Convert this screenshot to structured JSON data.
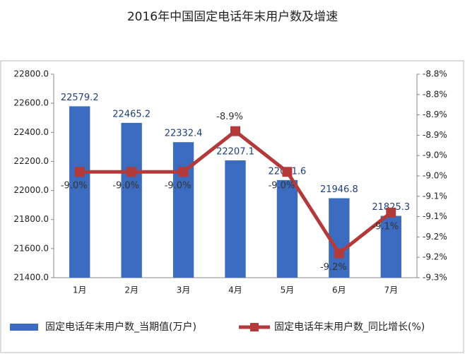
{
  "chart_data": {
    "type": "bar",
    "title": "2016年中国固定电话年末用户数及增速",
    "categories": [
      "1月",
      "2月",
      "3月",
      "4月",
      "5月",
      "6月",
      "7月"
    ],
    "series": [
      {
        "name": "固定电话年末用户数_当期值(万户)",
        "type": "bar",
        "color": "#3b6cbf",
        "values": [
          22579.2,
          22465.2,
          22332.4,
          22207.1,
          22071.6,
          21946.8,
          21825.3
        ]
      },
      {
        "name": "固定电话年末用户数_同比增长(%)",
        "type": "line",
        "axis": "y2",
        "color": "#b23a3a",
        "values": [
          -9.04,
          -9.04,
          -9.04,
          -8.94,
          -9.04,
          -9.24,
          -9.14
        ],
        "value_labels": [
          "-9.0%",
          "-9.0%",
          "-9.0%",
          "-8.9%",
          "-9.0%",
          "-9.2%",
          "-9.1%"
        ]
      }
    ],
    "ylim": [
      21400,
      22800
    ],
    "yticks": [
      {
        "value": 21400,
        "label": "21400.0"
      },
      {
        "value": 21600,
        "label": "21600.0"
      },
      {
        "value": 21800,
        "label": "21800.0"
      },
      {
        "value": 22000,
        "label": "22000.0"
      },
      {
        "value": 22200,
        "label": "22200.0"
      },
      {
        "value": 22400,
        "label": "22400.0"
      },
      {
        "value": 22600,
        "label": "22600.0"
      },
      {
        "value": 22800,
        "label": "22800.0"
      }
    ],
    "y2lim": [
      -9.3,
      -8.8
    ],
    "y2ticks": [
      {
        "value": -9.3,
        "label": "-9.3%"
      },
      {
        "value": -9.25,
        "label": "-9.2%"
      },
      {
        "value": -9.2,
        "label": "-9.2%"
      },
      {
        "value": -9.15,
        "label": "-9.1%"
      },
      {
        "value": -9.1,
        "label": "-9.1%"
      },
      {
        "value": -9.05,
        "label": "-9.0%"
      },
      {
        "value": -9.0,
        "label": "-9.0%"
      },
      {
        "value": -8.95,
        "label": "-8.9%"
      },
      {
        "value": -8.9,
        "label": "-8.9%"
      },
      {
        "value": -8.85,
        "label": "-8.8%"
      },
      {
        "value": -8.8,
        "label": "-8.8%"
      }
    ],
    "legend": "bottom"
  }
}
